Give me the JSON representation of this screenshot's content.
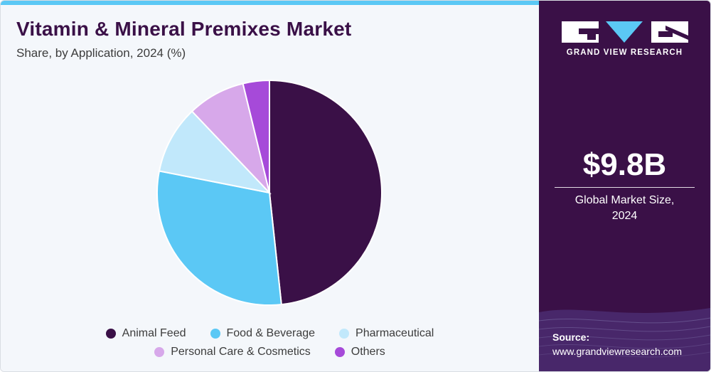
{
  "chart_data": {
    "type": "pie",
    "title": "Vitamin & Mineral Premixes Market",
    "subtitle": "Share, by Application, 2024 (%)",
    "slices": [
      {
        "name": "Animal Feed",
        "value": 48.3,
        "color": "#3a1047"
      },
      {
        "name": "Food & Beverage",
        "value": 29.8,
        "color": "#5bc8f5"
      },
      {
        "name": "Pharmaceutical",
        "value": 9.8,
        "color": "#c1e8fb"
      },
      {
        "name": "Personal Care & Cosmetics",
        "value": 8.3,
        "color": "#d7a8ea"
      },
      {
        "name": "Others",
        "value": 3.8,
        "color": "#a64ad9"
      }
    ],
    "legend_position": "bottom"
  },
  "sidebar": {
    "logo_text": "GRAND VIEW RESEARCH",
    "market_size": "$9.8B",
    "market_label_line1": "Global Market Size,",
    "market_label_line2": "2024",
    "source_label": "Source:",
    "source_url": "www.grandviewresearch.com"
  },
  "colors": {
    "brand_purple": "#3a1047",
    "accent_blue": "#5bc8f5",
    "background": "#f4f7fb"
  }
}
